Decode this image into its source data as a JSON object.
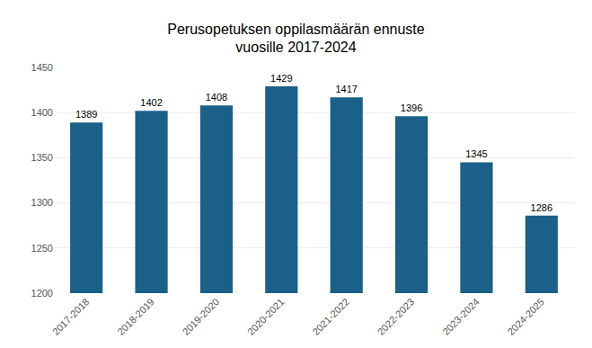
{
  "chart_data": {
    "type": "bar",
    "title": "Perusopetuksen oppilasmäärän ennuste\nvuosille 2017-2024",
    "categories": [
      "2017-2018",
      "2018-2019",
      "2019-2020",
      "2020-2021",
      "2021-2022",
      "2022-2023",
      "2023-2024",
      "2024-2025"
    ],
    "values": [
      1389,
      1402,
      1408,
      1429,
      1417,
      1396,
      1345,
      1286
    ],
    "color": "#1a6089",
    "ylim": [
      1200,
      1450
    ],
    "yticks": [
      1200,
      1250,
      1300,
      1350,
      1400,
      1450
    ],
    "grid": true,
    "data_labels": true
  }
}
